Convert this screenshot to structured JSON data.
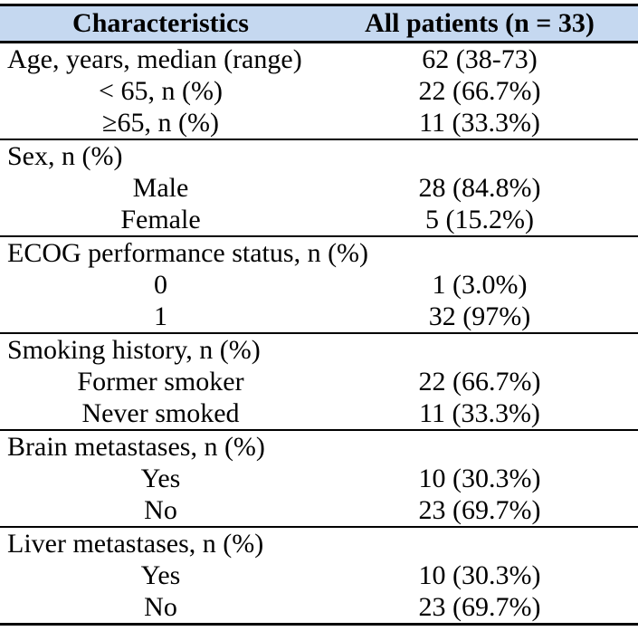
{
  "colors": {
    "header_bg": "#c5d8f0",
    "border": "#000000",
    "text": "#000000"
  },
  "table": {
    "header": {
      "characteristics": "Characteristics",
      "all_patients": "All patients (n = 33)"
    },
    "sections": [
      {
        "name": "age",
        "rows": [
          {
            "label": "Age, years, median (range)",
            "value": "62 (38-73)",
            "indent": false
          },
          {
            "label": "< 65, n (%)",
            "value": "22 (66.7%)",
            "indent": true
          },
          {
            "label": "≥65, n (%)",
            "value": "11 (33.3%)",
            "indent": true
          }
        ]
      },
      {
        "name": "sex",
        "rows": [
          {
            "label": "Sex, n (%)",
            "value": "",
            "indent": false
          },
          {
            "label": "Male",
            "value": "28 (84.8%)",
            "indent": true
          },
          {
            "label": "Female",
            "value": "5 (15.2%)",
            "indent": true
          }
        ]
      },
      {
        "name": "ecog-performance-status",
        "rows": [
          {
            "label": "ECOG performance status, n (%)",
            "value": "",
            "indent": false
          },
          {
            "label": "0",
            "value": "1 (3.0%)",
            "indent": true
          },
          {
            "label": "1",
            "value": "32 (97%)",
            "indent": true
          }
        ]
      },
      {
        "name": "smoking-history",
        "rows": [
          {
            "label": "Smoking history, n (%)",
            "value": "",
            "indent": false
          },
          {
            "label": "Former smoker",
            "value": "22 (66.7%)",
            "indent": true
          },
          {
            "label": "Never smoked",
            "value": "11 (33.3%)",
            "indent": true
          }
        ]
      },
      {
        "name": "brain-metastases",
        "rows": [
          {
            "label": "Brain metastases, n (%)",
            "value": "",
            "indent": false
          },
          {
            "label": "Yes",
            "value": "10 (30.3%)",
            "indent": true
          },
          {
            "label": "No",
            "value": "23 (69.7%)",
            "indent": true
          }
        ]
      },
      {
        "name": "liver-metastases",
        "rows": [
          {
            "label": "Liver metastases, n (%)",
            "value": "",
            "indent": false
          },
          {
            "label": "Yes",
            "value": "10 (30.3%)",
            "indent": true
          },
          {
            "label": "No",
            "value": "23 (69.7%)",
            "indent": true
          }
        ]
      }
    ]
  }
}
